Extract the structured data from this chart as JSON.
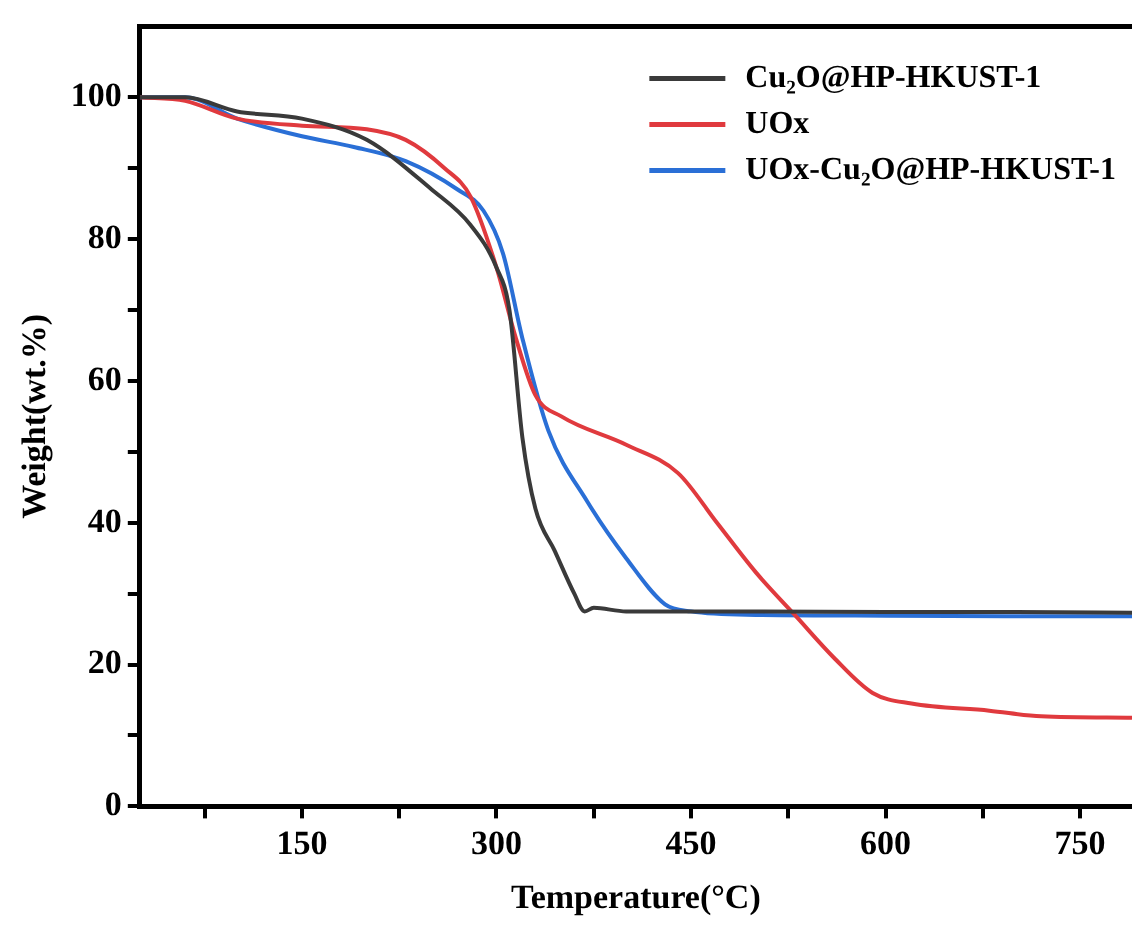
{
  "chart_data": {
    "type": "line",
    "xlabel": "Temperature(°C)",
    "ylabel": "Weight(wt.%)",
    "xlim": [
      25,
      790
    ],
    "ylim": [
      0,
      110
    ],
    "xticks": [
      {
        "value": 75,
        "label": null
      },
      150,
      {
        "value": 225,
        "label": null
      },
      300,
      {
        "value": 375,
        "label": null
      },
      450,
      {
        "value": 525,
        "label": null
      },
      600,
      {
        "value": 675,
        "label": null
      },
      750
    ],
    "yticks": [
      0,
      {
        "value": 10,
        "label": null
      },
      20,
      {
        "value": 30,
        "label": null
      },
      40,
      {
        "value": 50,
        "label": null
      },
      60,
      {
        "value": 70,
        "label": null
      },
      80,
      {
        "value": 90,
        "label": null
      },
      100
    ],
    "grid": false,
    "legend": "top right",
    "marker": "none",
    "line_style": "solid",
    "series": [
      {
        "name": "Cu₂O@HP-HKUST-1",
        "color": "#3a3a3a",
        "x": [
          25,
          60,
          100,
          150,
          200,
          250,
          280,
          300,
          310,
          320,
          330,
          345,
          360,
          368,
          375,
          400,
          500,
          600,
          700,
          790
        ],
        "values": [
          100,
          100,
          98,
          97,
          94,
          87,
          82,
          76,
          70,
          52,
          42,
          36,
          30,
          27.5,
          28,
          27.5,
          27.5,
          27.4,
          27.4,
          27.3
        ]
      },
      {
        "name": "UOx",
        "color": "#e03a3e",
        "x": [
          25,
          60,
          100,
          150,
          200,
          230,
          260,
          280,
          300,
          315,
          330,
          350,
          400,
          440,
          470,
          500,
          530,
          560,
          590,
          620,
          680,
          720,
          790
        ],
        "values": [
          100,
          99.5,
          97,
          96,
          95.5,
          94,
          90,
          86,
          76,
          66,
          58,
          55,
          51,
          47,
          40,
          33,
          27,
          21,
          16,
          14.5,
          13.5,
          12.7,
          12.5
        ]
      },
      {
        "name": "UOx-Cu₂O@HP-HKUST-1",
        "color": "#2a6fd6",
        "x": [
          25,
          60,
          100,
          150,
          190,
          230,
          270,
          290,
          305,
          320,
          340,
          370,
          400,
          430,
          450,
          500,
          600,
          700,
          790
        ],
        "values": [
          100,
          100,
          97,
          94.5,
          93,
          91,
          87,
          84,
          78,
          66,
          53,
          43,
          35,
          28.5,
          27.5,
          27,
          26.9,
          26.8,
          26.8
        ]
      }
    ]
  }
}
